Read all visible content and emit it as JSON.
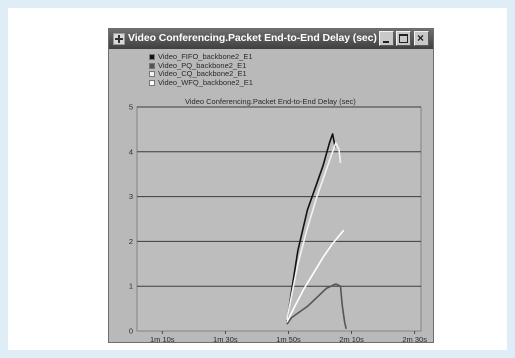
{
  "window": {
    "title": "Video Conferencing.Packet End-to-End Delay (sec)"
  },
  "chart_data": {
    "type": "line",
    "title": "Video Conferencing.Packet End-to-End Delay (sec)",
    "xlabel": "",
    "ylabel": "",
    "x_ticks": [
      "1m 10s",
      "1m 30s",
      "1m 50s",
      "2m 10s",
      "2m 30s"
    ],
    "x_tick_seconds": [
      70,
      90,
      110,
      130,
      150
    ],
    "xlim": [
      62,
      152
    ],
    "ylim": [
      0,
      5
    ],
    "y_ticks": [
      0,
      1,
      2,
      3,
      4,
      5
    ],
    "grid": true,
    "legend_position": "top-left",
    "series": [
      {
        "name": "Video_FIFO_backbone2_E1",
        "color": "#111111",
        "points": [
          [
            109.5,
            0.2
          ],
          [
            111,
            0.9
          ],
          [
            113,
            1.8
          ],
          [
            116,
            2.7
          ],
          [
            119,
            3.3
          ],
          [
            121,
            3.7
          ],
          [
            123,
            4.2
          ],
          [
            124,
            4.4
          ],
          [
            124.8,
            4.1
          ]
        ]
      },
      {
        "name": "Video_PQ_backbone2_E1",
        "color": "#555555",
        "points": [
          [
            109.5,
            0.15
          ],
          [
            111,
            0.3
          ],
          [
            113,
            0.4
          ],
          [
            116,
            0.55
          ],
          [
            119,
            0.75
          ],
          [
            122,
            0.95
          ],
          [
            125,
            1.05
          ],
          [
            126.5,
            1.0
          ],
          [
            127,
            0.6
          ],
          [
            127.8,
            0.2
          ],
          [
            128.3,
            0.05
          ]
        ]
      },
      {
        "name": "Video_CQ_backbone2_E1",
        "color": "#f2f2f2",
        "points": [
          [
            109.5,
            0.25
          ],
          [
            111,
            0.8
          ],
          [
            113,
            1.5
          ],
          [
            116,
            2.3
          ],
          [
            119,
            3.0
          ],
          [
            122,
            3.6
          ],
          [
            124,
            4.0
          ],
          [
            125,
            4.2
          ],
          [
            126,
            4.05
          ],
          [
            126.5,
            3.75
          ]
        ]
      },
      {
        "name": "Video_WFQ_backbone2_E1",
        "color": "#ffffff",
        "points": [
          [
            109.5,
            0.2
          ],
          [
            112,
            0.55
          ],
          [
            115,
            0.95
          ],
          [
            118,
            1.3
          ],
          [
            121,
            1.65
          ],
          [
            124,
            1.95
          ],
          [
            127.5,
            2.25
          ]
        ]
      }
    ]
  }
}
